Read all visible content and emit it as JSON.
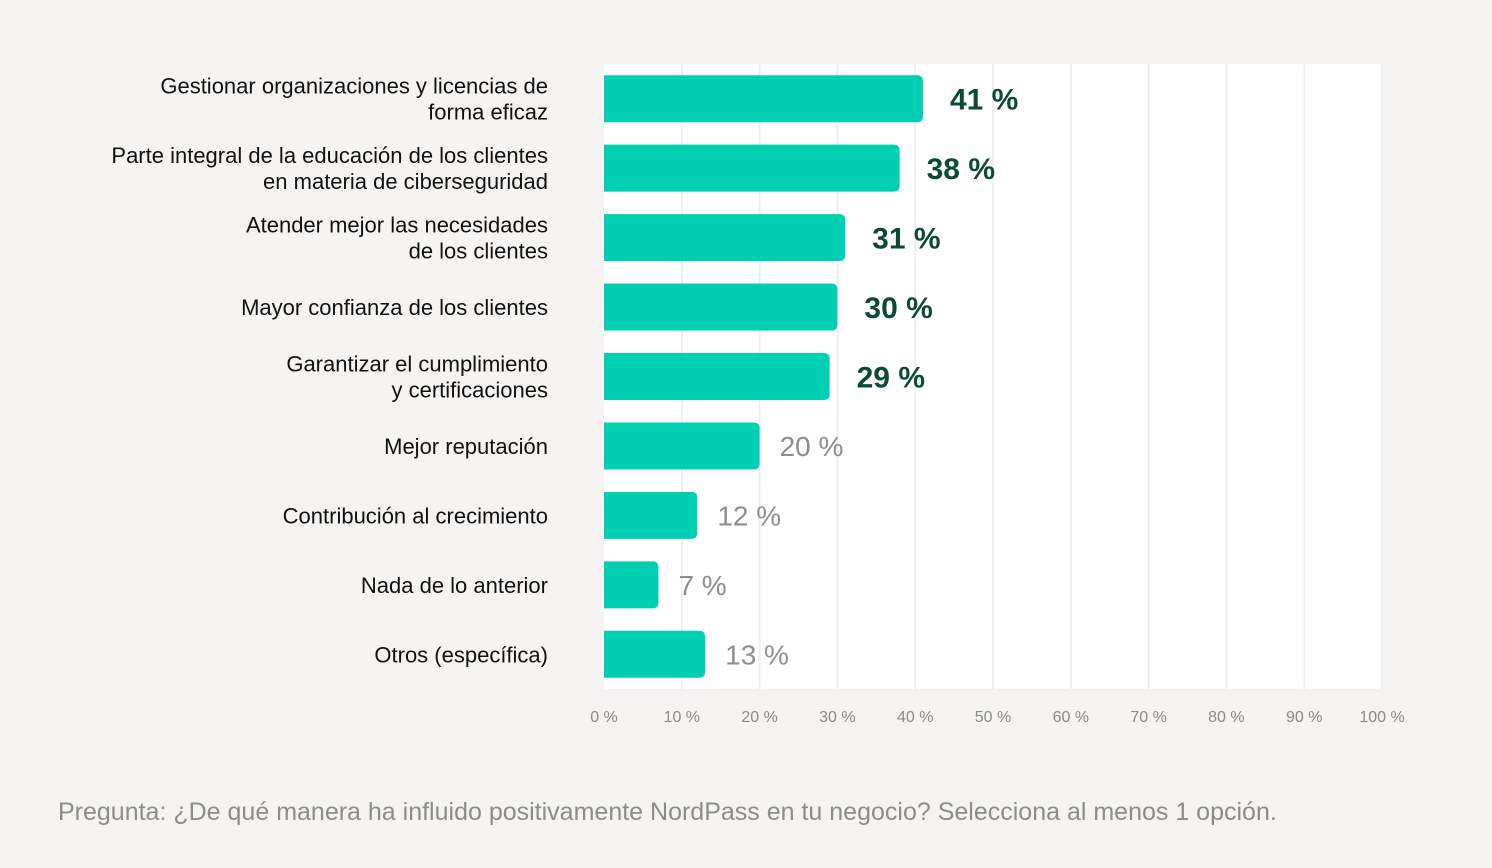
{
  "chart_data": {
    "type": "bar",
    "orientation": "horizontal",
    "categories": [
      [
        "Gestionar organizaciones y licencias de",
        "forma eficaz"
      ],
      [
        "Parte integral de la educación de los clientes",
        "en materia de ciberseguridad"
      ],
      [
        "Atender mejor las necesidades",
        "de los clientes"
      ],
      [
        "Mayor confianza de los clientes"
      ],
      [
        "Garantizar el cumplimiento",
        "y certificaciones"
      ],
      [
        "Mejor reputación"
      ],
      [
        "Contribución al crecimiento"
      ],
      [
        "Nada de lo anterior"
      ],
      [
        "Otros (específica)"
      ]
    ],
    "values": [
      41,
      38,
      31,
      30,
      29,
      20,
      12,
      7,
      13
    ],
    "value_labels": [
      "41 %",
      "38 %",
      "31 %",
      "30 %",
      "29 %",
      "20 %",
      "12 %",
      "7 %",
      "13 %"
    ],
    "highlighted": [
      true,
      true,
      true,
      true,
      true,
      false,
      false,
      false,
      false
    ],
    "xlim": [
      0,
      100
    ],
    "ticks": [
      0,
      10,
      20,
      30,
      40,
      50,
      60,
      70,
      80,
      90,
      100
    ],
    "tick_labels": [
      "0 %",
      "10 %",
      "20 %",
      "30 %",
      "40 %",
      "50 %",
      "60 %",
      "70 %",
      "80 %",
      "90 %",
      "100 %"
    ],
    "grid": true,
    "colors": {
      "bar": "#00cfb2",
      "label_strong": "#0c4a32",
      "label_muted": "#8e8e8e",
      "plot_bg": "#ffffff",
      "gridline": "#eeeeee"
    }
  },
  "footnote": "Pregunta: ¿De qué manera ha influido positivamente NordPass en tu negocio? Selecciona al menos 1 opción."
}
